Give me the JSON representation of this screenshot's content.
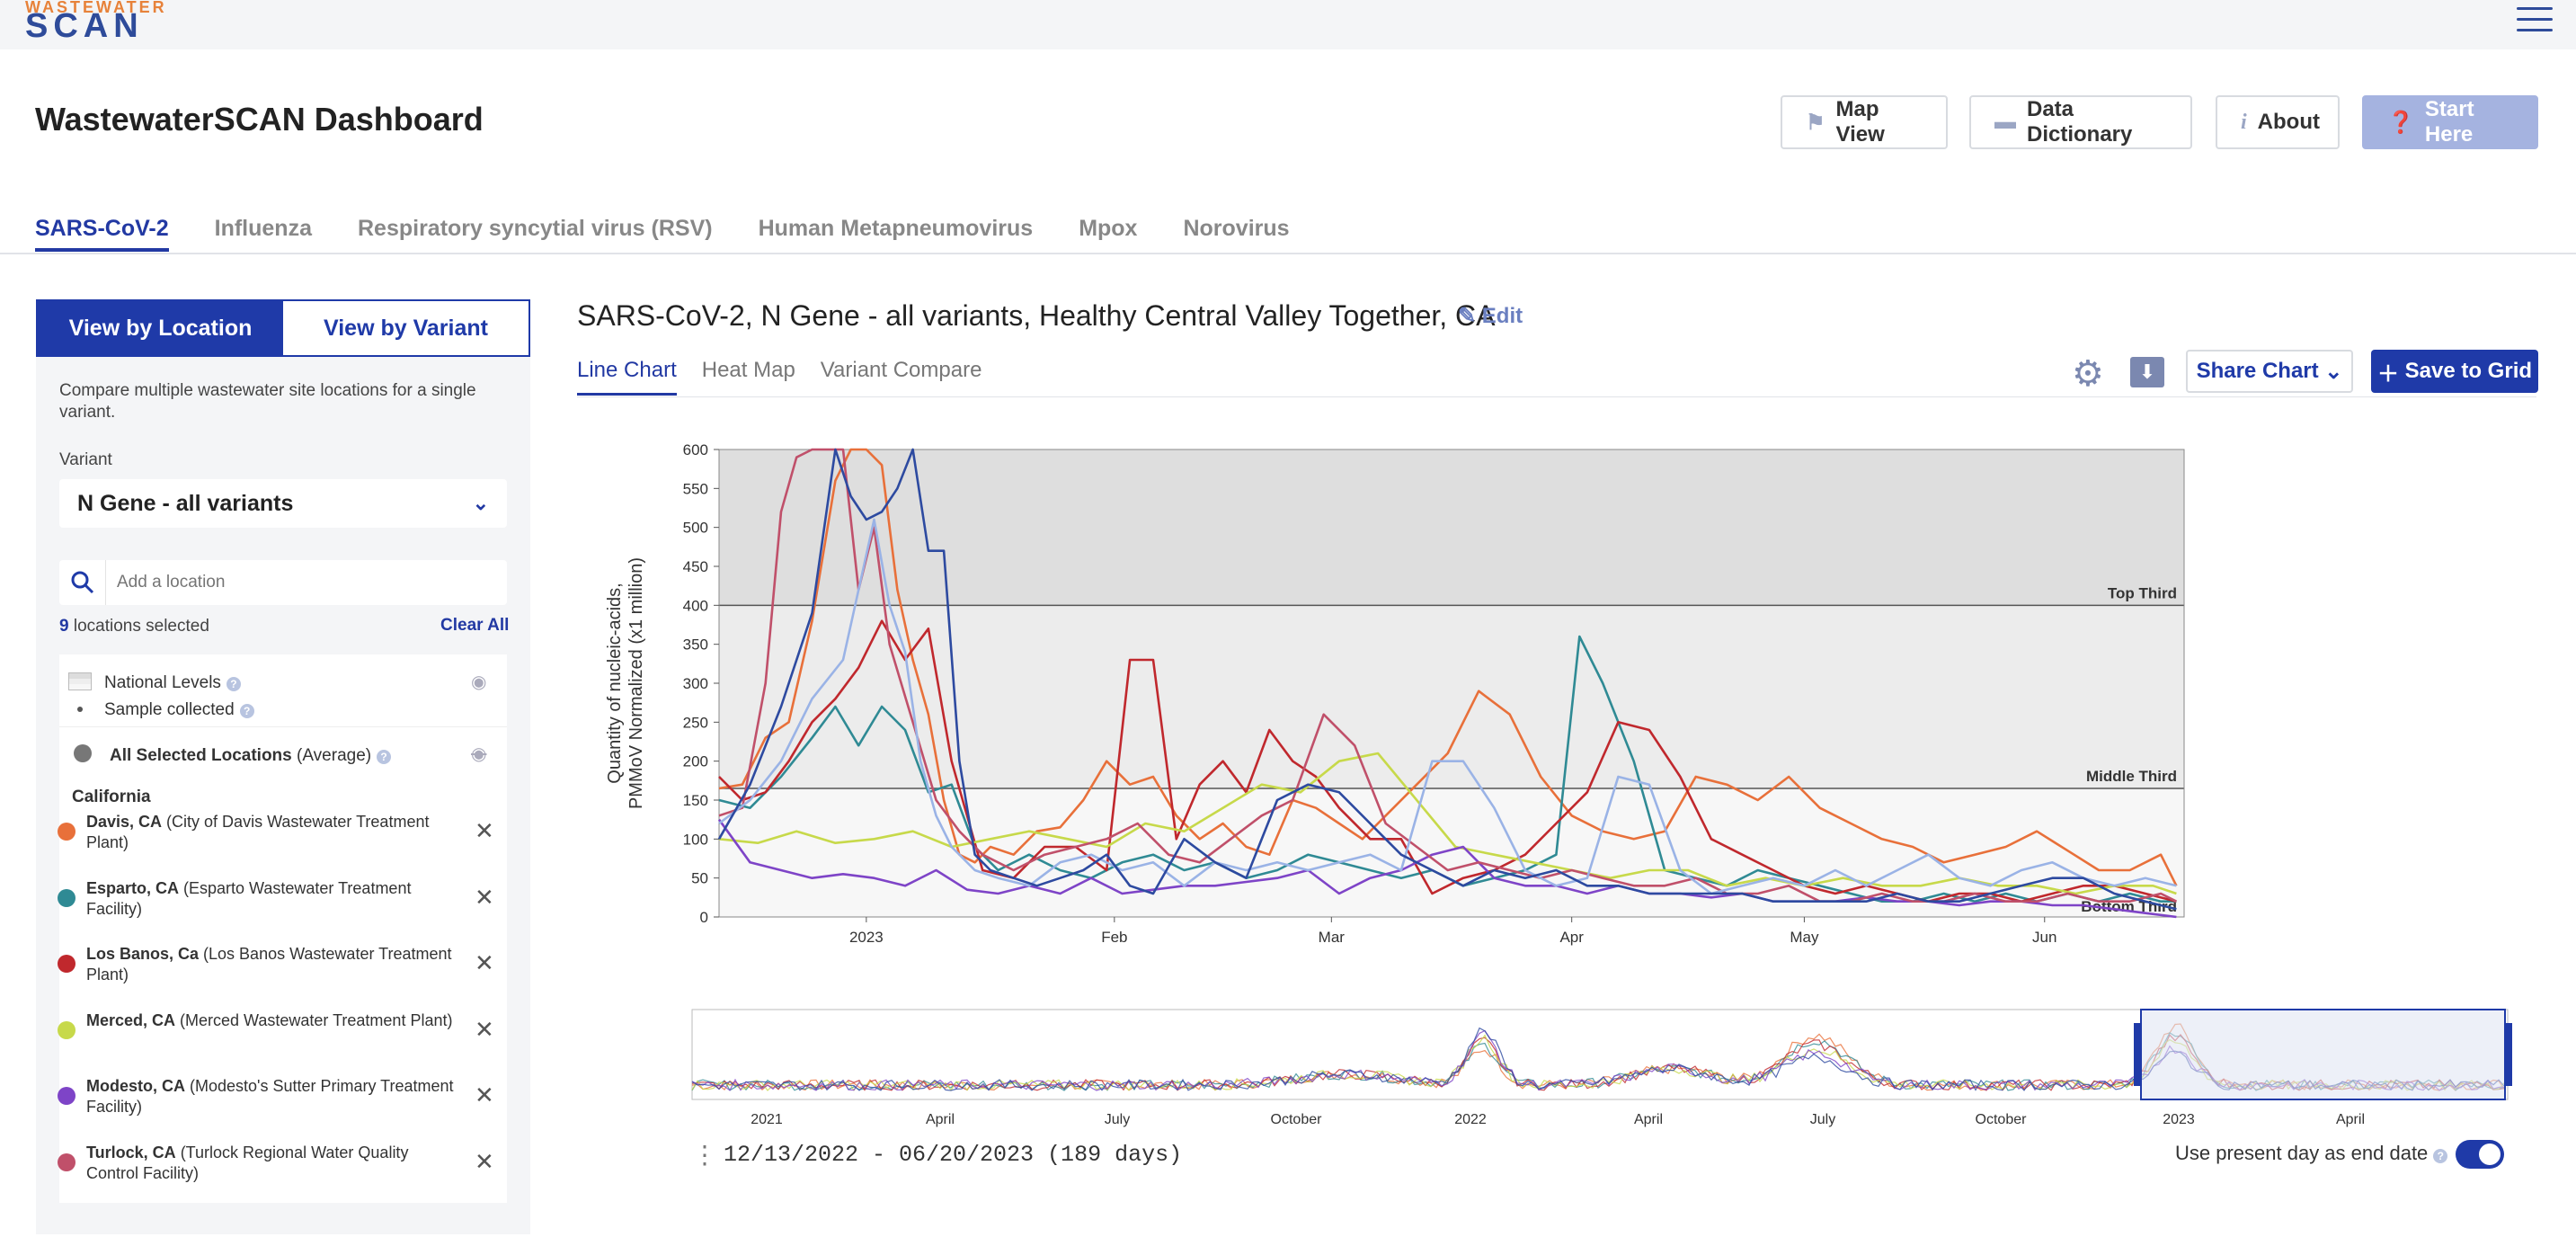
{
  "header": {
    "logo_top": "WASTEWATER",
    "logo_bottom": "SCAN",
    "title": "WastewaterSCAN Dashboard",
    "buttons": {
      "map_view": "Map View",
      "data_dictionary": "Data Dictionary",
      "about": "About",
      "start_here": "Start Here"
    }
  },
  "virus_tabs": [
    "SARS-CoV-2",
    "Influenza",
    "Respiratory syncytial virus (RSV)",
    "Human Metapneumovirus",
    "Mpox",
    "Norovirus"
  ],
  "sidebar": {
    "view_by_location": "View by Location",
    "view_by_variant": "View by Variant",
    "description": "Compare multiple wastewater site locations for a single variant.",
    "variant_label": "Variant",
    "variant_value": "N Gene - all variants",
    "search_placeholder": "Add a location",
    "count": "9",
    "count_label": " locations selected",
    "clear_all": "Clear All",
    "legend": {
      "national_levels": "National Levels",
      "sample_collected": "Sample collected",
      "all_selected_bold": "All Selected Locations",
      "all_selected_rest": " (Average)",
      "state": "California"
    },
    "locations": [
      {
        "name": "Davis, CA",
        "plant": " (City of Davis Wastewater Treatment Plant)",
        "color": "#e8703a"
      },
      {
        "name": "Esparto, CA",
        "plant": " (Esparto Wastewater Treatment Facility)",
        "color": "#2f8a94"
      },
      {
        "name": "Los Banos, Ca",
        "plant": " (Los Banos Wastewater Treatment Plant)",
        "color": "#c0282d"
      },
      {
        "name": "Merced, CA",
        "plant": " (Merced Wastewater Treatment Plant)",
        "color": "#c7d94a"
      },
      {
        "name": "Modesto, CA",
        "plant": " (Modesto's Sutter Primary Treatment Facility)",
        "color": "#7e44c7"
      },
      {
        "name": "Turlock, CA",
        "plant": " (Turlock Regional Water Quality Control Facility)",
        "color": "#c0506a"
      }
    ]
  },
  "chart_panel": {
    "title": "SARS-CoV-2, N Gene - all variants, Healthy Central Valley Together, CA",
    "edit": "Edit",
    "tabs": [
      "Line Chart",
      "Heat Map",
      "Variant Compare"
    ],
    "share": "Share Chart",
    "save": "Save to Grid",
    "date_range": "12/13/2022 - 06/20/2023 (189 days)",
    "present_label": "Use present day as end date"
  },
  "chart_data": [
    {
      "type": "line",
      "ylabel": "Quantity of nucleic-acids, PMMoV Normalized (x1 million)",
      "ylim": [
        0,
        600
      ],
      "yticks": [
        0,
        50,
        100,
        150,
        200,
        250,
        300,
        350,
        400,
        450,
        500,
        550,
        600
      ],
      "xticks": [
        "2023",
        "Feb",
        "Mar",
        "Apr",
        "May",
        "Jun"
      ],
      "xtick_days": [
        19,
        51,
        79,
        110,
        140,
        171
      ],
      "xlim_days": [
        0,
        189
      ],
      "bands": [
        {
          "label": "Top Third",
          "y": 400
        },
        {
          "label": "Middle Third",
          "y": 165
        },
        {
          "label": "Bottom Third",
          "y": 0
        }
      ],
      "grid": false,
      "series": [
        {
          "color": "#e8703a",
          "x": [
            0,
            3,
            6,
            9,
            12,
            15,
            17,
            19,
            21,
            23,
            25,
            27,
            29,
            31,
            33,
            35,
            38,
            41,
            44,
            47,
            50,
            53,
            56,
            59,
            62,
            65,
            68,
            71,
            74,
            77,
            80,
            83,
            86,
            90,
            94,
            98,
            102,
            106,
            110,
            114,
            118,
            122,
            126,
            130,
            134,
            138,
            142,
            146,
            150,
            154,
            158,
            162,
            166,
            170,
            174,
            178,
            182,
            186,
            188
          ],
          "y": [
            165,
            170,
            230,
            250,
            380,
            560,
            600,
            600,
            580,
            420,
            330,
            260,
            150,
            80,
            70,
            90,
            80,
            110,
            115,
            150,
            200,
            170,
            180,
            130,
            100,
            120,
            90,
            80,
            150,
            140,
            120,
            100,
            130,
            170,
            210,
            290,
            260,
            180,
            130,
            110,
            100,
            110,
            180,
            170,
            150,
            180,
            140,
            120,
            100,
            90,
            70,
            80,
            90,
            110,
            85,
            60,
            60,
            80,
            40
          ]
        },
        {
          "color": "#2f8a94",
          "x": [
            0,
            4,
            8,
            12,
            15,
            18,
            21,
            24,
            27,
            30,
            33,
            36,
            40,
            44,
            48,
            52,
            56,
            60,
            64,
            68,
            72,
            76,
            80,
            84,
            88,
            92,
            96,
            100,
            104,
            108,
            111,
            114,
            118,
            122,
            126,
            130,
            134,
            138,
            142,
            146,
            150,
            154,
            158,
            162,
            166,
            170,
            174,
            178,
            182,
            186,
            188
          ],
          "y": [
            150,
            140,
            180,
            230,
            270,
            220,
            270,
            240,
            160,
            170,
            90,
            60,
            80,
            60,
            50,
            70,
            80,
            60,
            70,
            50,
            60,
            80,
            70,
            60,
            50,
            60,
            40,
            50,
            60,
            80,
            360,
            300,
            200,
            60,
            50,
            40,
            60,
            50,
            40,
            30,
            20,
            20,
            30,
            20,
            30,
            20,
            30,
            20,
            30,
            20,
            20
          ]
        },
        {
          "color": "#c0282d",
          "x": [
            0,
            3,
            6,
            9,
            12,
            15,
            18,
            21,
            24,
            27,
            30,
            34,
            38,
            42,
            46,
            50,
            53,
            56,
            59,
            62,
            65,
            68,
            71,
            74,
            77,
            80,
            84,
            88,
            92,
            96,
            100,
            104,
            108,
            112,
            116,
            120,
            124,
            128,
            132,
            136,
            140,
            144,
            148,
            152,
            156,
            160,
            164,
            168,
            172,
            176,
            180,
            184,
            188
          ],
          "y": [
            180,
            150,
            160,
            200,
            250,
            280,
            320,
            380,
            330,
            370,
            200,
            60,
            50,
            90,
            90,
            60,
            330,
            330,
            100,
            170,
            200,
            160,
            240,
            200,
            180,
            140,
            100,
            100,
            30,
            50,
            60,
            80,
            120,
            160,
            250,
            240,
            180,
            100,
            80,
            60,
            40,
            30,
            40,
            30,
            20,
            30,
            30,
            20,
            30,
            40,
            40,
            30,
            20
          ]
        },
        {
          "color": "#c7d94a",
          "x": [
            0,
            5,
            10,
            15,
            20,
            25,
            30,
            35,
            40,
            45,
            50,
            55,
            60,
            65,
            70,
            75,
            80,
            85,
            90,
            95,
            100,
            105,
            110,
            115,
            120,
            125,
            130,
            135,
            140,
            145,
            150,
            155,
            160,
            165,
            170,
            175,
            180,
            185,
            188
          ],
          "y": [
            100,
            95,
            110,
            95,
            100,
            110,
            90,
            100,
            110,
            100,
            90,
            120,
            110,
            140,
            170,
            160,
            200,
            210,
            150,
            90,
            80,
            70,
            60,
            50,
            60,
            60,
            40,
            50,
            40,
            50,
            40,
            40,
            50,
            40,
            40,
            30,
            40,
            40,
            30
          ]
        },
        {
          "color": "#7e44c7",
          "x": [
            0,
            4,
            8,
            12,
            16,
            20,
            24,
            28,
            32,
            36,
            40,
            44,
            48,
            52,
            56,
            60,
            64,
            68,
            72,
            76,
            80,
            84,
            88,
            92,
            96,
            100,
            104,
            108,
            112,
            116,
            120,
            124,
            128,
            132,
            136,
            140,
            144,
            148,
            152,
            156,
            160,
            164,
            168,
            172,
            176,
            180,
            184,
            188
          ],
          "y": [
            125,
            70,
            60,
            50,
            55,
            50,
            40,
            60,
            35,
            30,
            40,
            30,
            50,
            30,
            35,
            40,
            40,
            45,
            50,
            60,
            30,
            50,
            60,
            80,
            90,
            50,
            40,
            40,
            30,
            40,
            30,
            30,
            25,
            30,
            20,
            20,
            20,
            25,
            20,
            20,
            15,
            20,
            20,
            15,
            15,
            10,
            5,
            0
          ]
        },
        {
          "color": "#c0506a",
          "x": [
            0,
            3,
            6,
            8,
            10,
            12,
            14,
            16,
            18,
            20,
            22,
            25,
            28,
            31,
            34,
            38,
            42,
            46,
            50,
            54,
            58,
            62,
            66,
            70,
            74,
            78,
            82,
            86,
            90,
            94,
            98,
            102,
            106,
            110,
            114,
            118,
            122,
            126,
            130,
            134,
            138,
            142,
            146,
            150,
            154,
            158,
            162,
            166,
            170,
            174,
            178,
            182,
            186,
            188
          ],
          "y": [
            130,
            140,
            300,
            520,
            590,
            600,
            600,
            600,
            420,
            500,
            350,
            250,
            150,
            110,
            80,
            60,
            80,
            90,
            100,
            120,
            80,
            70,
            100,
            130,
            150,
            260,
            220,
            120,
            90,
            60,
            70,
            60,
            50,
            60,
            50,
            40,
            40,
            50,
            30,
            30,
            40,
            20,
            20,
            30,
            20,
            20,
            30,
            20,
            20,
            30,
            20,
            20,
            30,
            20
          ]
        },
        {
          "color": "#9ab3e6",
          "x": [
            0,
            4,
            8,
            12,
            16,
            20,
            22,
            24,
            26,
            28,
            30,
            33,
            36,
            40,
            44,
            48,
            52,
            56,
            60,
            64,
            68,
            72,
            76,
            80,
            84,
            88,
            92,
            96,
            100,
            104,
            108,
            112,
            116,
            120,
            124,
            128,
            132,
            136,
            140,
            144,
            148,
            152,
            156,
            160,
            164,
            168,
            172,
            176,
            180,
            184,
            188
          ],
          "y": [
            120,
            150,
            200,
            280,
            330,
            510,
            400,
            340,
            200,
            130,
            90,
            60,
            50,
            40,
            70,
            80,
            60,
            70,
            40,
            70,
            60,
            70,
            60,
            70,
            80,
            60,
            200,
            200,
            140,
            60,
            40,
            50,
            180,
            170,
            60,
            30,
            40,
            50,
            40,
            60,
            40,
            60,
            80,
            50,
            40,
            60,
            70,
            50,
            40,
            50,
            40
          ]
        },
        {
          "color": "#2d4aa0",
          "x": [
            0,
            4,
            8,
            12,
            15,
            17,
            19,
            21,
            23,
            25,
            27,
            29,
            31,
            33,
            35,
            38,
            41,
            44,
            47,
            50,
            53,
            56,
            60,
            64,
            68,
            72,
            76,
            80,
            84,
            88,
            92,
            96,
            100,
            104,
            108,
            112,
            116,
            120,
            124,
            128,
            132,
            136,
            140,
            144,
            148,
            152,
            156,
            160,
            164,
            168,
            172,
            176,
            180,
            184,
            188
          ],
          "y": [
            100,
            170,
            270,
            390,
            600,
            540,
            510,
            520,
            550,
            600,
            470,
            470,
            200,
            80,
            60,
            50,
            40,
            50,
            60,
            80,
            40,
            30,
            100,
            70,
            50,
            150,
            170,
            160,
            120,
            80,
            60,
            40,
            60,
            50,
            60,
            40,
            40,
            30,
            30,
            30,
            30,
            20,
            20,
            20,
            20,
            30,
            20,
            20,
            30,
            40,
            50,
            50,
            30,
            20,
            10
          ]
        }
      ]
    },
    {
      "type": "line",
      "xticks": [
        "2021",
        "April",
        "July",
        "October",
        "2022",
        "April",
        "July",
        "October",
        "2023",
        "April"
      ]
    }
  ]
}
